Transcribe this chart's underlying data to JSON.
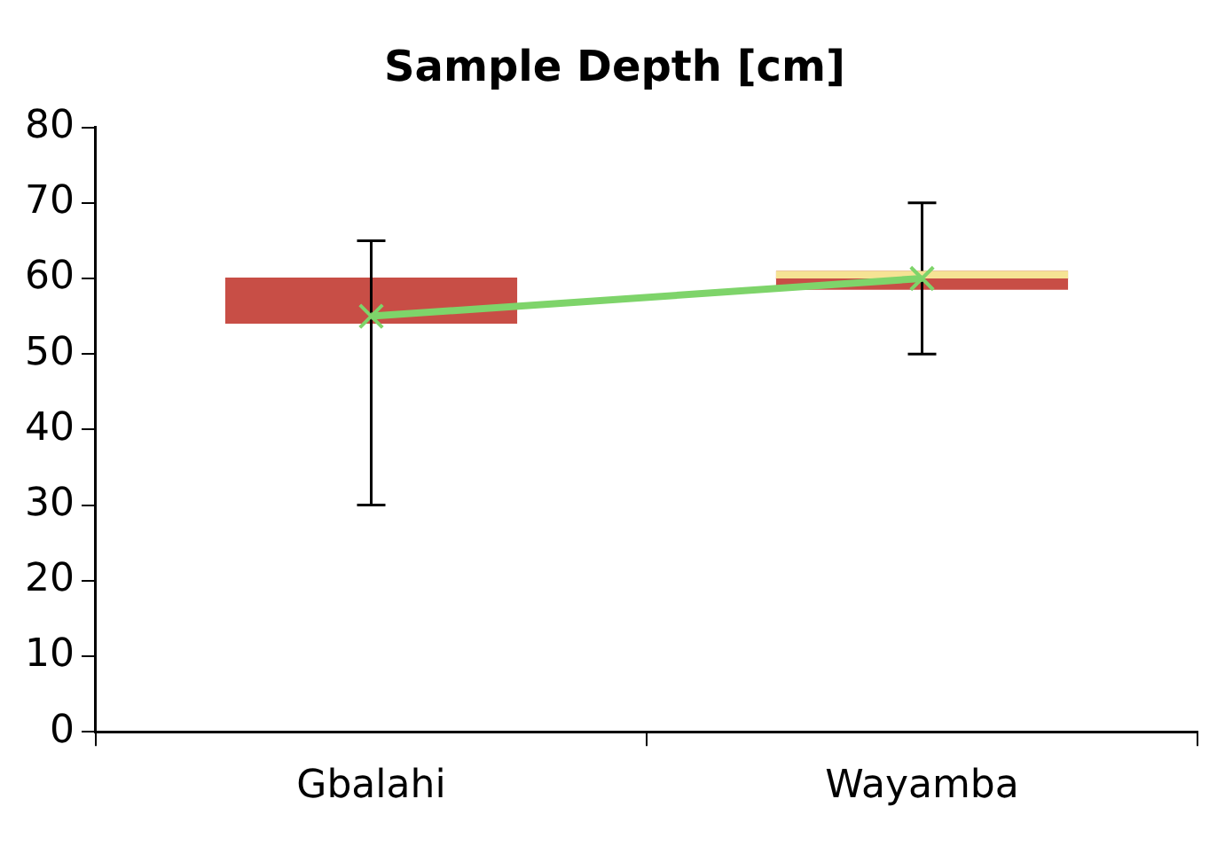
{
  "chart_data": {
    "type": "box",
    "title": "Sample Depth [cm]",
    "categories": [
      "Gbalahi",
      "Wayamba"
    ],
    "ylim": [
      0,
      80
    ],
    "yticks": [
      0,
      10,
      20,
      30,
      40,
      50,
      60,
      70,
      80
    ],
    "grid": false,
    "legend": false,
    "series": [
      {
        "color": "#c84e46",
        "boxes": [
          {
            "low": 30,
            "q1": 54,
            "median": 60,
            "q3": 60,
            "high": 65
          },
          {
            "low": 50,
            "q1": 58.5,
            "median": 60,
            "q3": 61,
            "high": 70
          }
        ]
      },
      {
        "type": "bar",
        "color": "#f6e394",
        "base": [
          null,
          60
        ],
        "values": [
          null,
          1
        ]
      },
      {
        "type": "line",
        "color": "#7ed46a",
        "marker": "cross",
        "values": [
          55,
          60
        ]
      }
    ]
  }
}
